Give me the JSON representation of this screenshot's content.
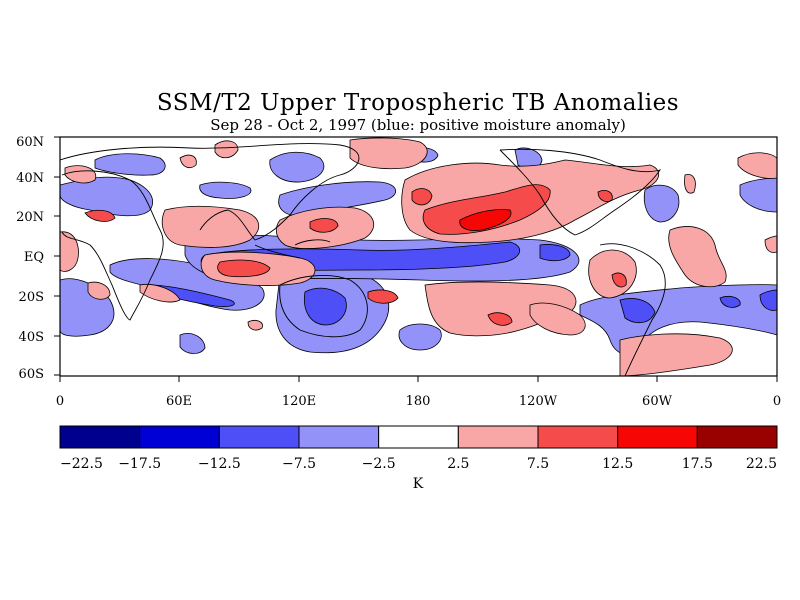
{
  "title": "SSM/T2 Upper Tropospheric TB Anomalies",
  "subtitle": "Sep 28 - Oct 2, 1997 (blue: positive moisture anomaly)",
  "lat_ticks": [
    "60N",
    "40N",
    "20N",
    "EQ",
    "20S",
    "40S",
    "60S"
  ],
  "lon_ticks": [
    "0",
    "60E",
    "120E",
    "180",
    "120W",
    "60W",
    "0"
  ],
  "colorbar": {
    "unit": "K",
    "labels": [
      "-22.5",
      "-17.5",
      "-12.5",
      "-7.5",
      "-2.5",
      "2.5",
      "7.5",
      "12.5",
      "17.5",
      "22.5"
    ],
    "colors": [
      "#00008f",
      "#0000d6",
      "#4f4ff7",
      "#9292f8",
      "#ffffff",
      "#f8a6a6",
      "#f54b4b",
      "#f70606",
      "#990000"
    ]
  },
  "map_colors": {
    "neg_light": "#9292f8",
    "neg_mid": "#4f4ff7",
    "pos_light": "#f8a6a6",
    "pos_mid": "#f54b4b",
    "pos_strong": "#f70606"
  }
}
